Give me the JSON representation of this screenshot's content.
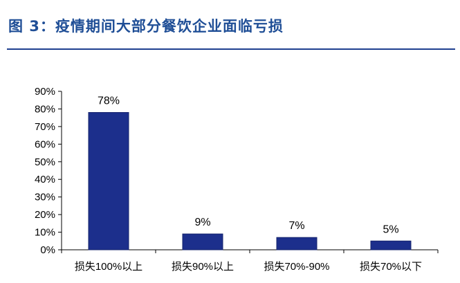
{
  "figure_title": "图 3：疫情期间大部分餐饮企业面临亏损",
  "colors": {
    "bar": "#1c2f8c",
    "bar_edge": "#16246d",
    "title": "#1f4e96",
    "rule": "#1f3f8f",
    "axis": "#000000"
  },
  "chart_data": {
    "type": "bar",
    "title": "",
    "xlabel": "",
    "ylabel": "",
    "categories": [
      "损失100%以上",
      "损失90%以上",
      "损失70%-90%",
      "损失70%以下"
    ],
    "values": [
      78,
      9,
      7,
      5
    ],
    "data_labels": [
      "78%",
      "9%",
      "7%",
      "5%"
    ],
    "ylim": [
      0,
      90
    ],
    "y_ticks": [
      0,
      10,
      20,
      30,
      40,
      50,
      60,
      70,
      80,
      90
    ],
    "y_tick_labels": [
      "0%",
      "10%",
      "20%",
      "30%",
      "40%",
      "50%",
      "60%",
      "70%",
      "80%",
      "90%"
    ],
    "grid": false,
    "legend": "none"
  }
}
